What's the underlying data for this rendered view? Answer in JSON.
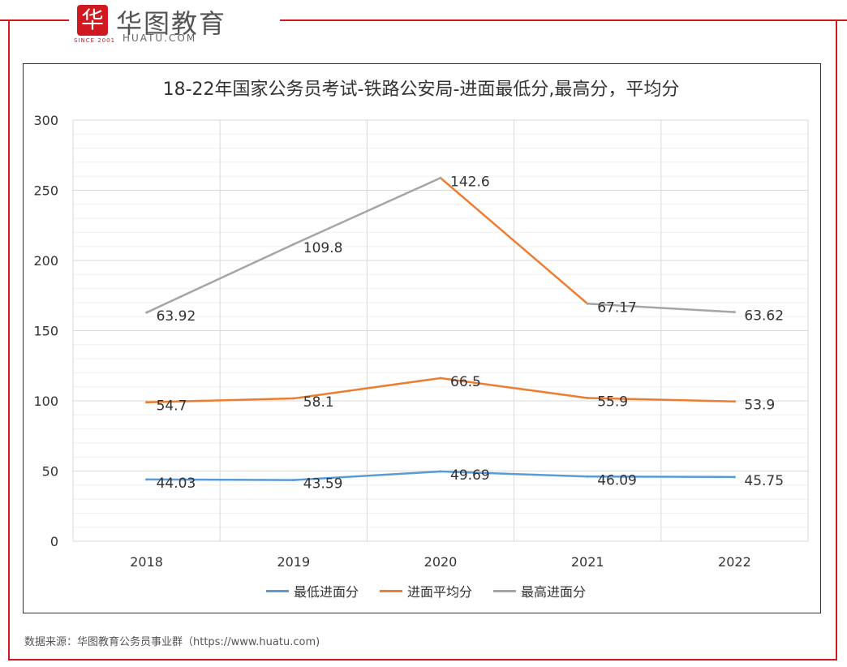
{
  "logo": {
    "mark": "华",
    "name_cn": "华图教育",
    "name_en": "HUATU.COM",
    "since": "SINCE 2001"
  },
  "source_text": "数据来源：华图教育公务员事业群（https://www.huatu.com)",
  "colors": {
    "frame": "#d01820",
    "grid": "#d9d9d9",
    "text": "#333333"
  },
  "chart_data": {
    "type": "line",
    "title": "18-22年国家公务员考试-铁路公安局-进面最低分,最高分，平均分",
    "categories": [
      "2018",
      "2019",
      "2020",
      "2021",
      "2022"
    ],
    "ylim": [
      0,
      300
    ],
    "yticks": [
      0,
      50,
      100,
      150,
      200,
      250,
      300
    ],
    "grid": true,
    "legend_position": "bottom",
    "series": [
      {
        "name": "最低进面分",
        "color": "#5b9bd5",
        "plot_values": [
          44.03,
          43.59,
          49.69,
          46.09,
          45.75
        ],
        "labels": [
          "44.03",
          "43.59",
          "49.69",
          "46.09",
          "45.75"
        ]
      },
      {
        "name": "进面平均分",
        "color": "#ed7d31",
        "plot_values": [
          99,
          101.7,
          116.2,
          102,
          99.6
        ],
        "labels": [
          "54.7",
          "58.1",
          "66.5",
          "55.9",
          "53.9"
        ]
      },
      {
        "name": "最高进面分",
        "color": "#a5a5a5",
        "plot_values": [
          162.9,
          211.5,
          258.8,
          169.2,
          163.2
        ],
        "labels": [
          "63.92",
          "109.8",
          "142.6",
          "67.17",
          "63.62"
        ]
      }
    ],
    "segment_colors": {
      "最高进面分": [
        "#a5a5a5",
        "#a5a5a5",
        "#ed7d31",
        "#a5a5a5"
      ]
    }
  }
}
